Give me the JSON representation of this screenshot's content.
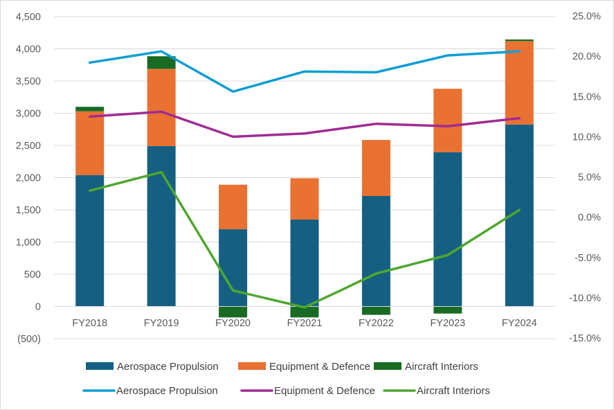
{
  "chart_data": {
    "type": "bar",
    "categories": [
      "FY2018",
      "FY2019",
      "FY2020",
      "FY2021",
      "FY2022",
      "FY2023",
      "FY2024"
    ],
    "left_axis": {
      "ylim": [
        -500,
        4500
      ],
      "tick_values": [
        -500,
        0,
        500,
        1000,
        1500,
        2000,
        2500,
        3000,
        3500,
        4000,
        4500
      ],
      "tick_labels": [
        "(500)",
        "0",
        "500",
        "1,000",
        "1,500",
        "2,000",
        "2,500",
        "3,000",
        "3,500",
        "4,000",
        "4,500"
      ]
    },
    "right_axis": {
      "ylim": [
        -15,
        25
      ],
      "tick_values": [
        -15,
        -10,
        -5,
        0,
        5,
        10,
        15,
        20,
        25
      ],
      "tick_labels": [
        "-15.0%",
        "-10.0%",
        "-5.0%",
        "0.0%",
        "5.0%",
        "10.0%",
        "15.0%",
        "20.0%",
        "25.0%"
      ]
    },
    "bar_series": [
      {
        "name": "Aerospace Propulsion",
        "color": "#156082",
        "values": [
          2040,
          2490,
          1200,
          1350,
          1715,
          2395,
          2825
        ]
      },
      {
        "name": "Equipment & Defence",
        "color": "#E97132",
        "values": [
          990,
          1200,
          690,
          640,
          870,
          985,
          1295
        ]
      },
      {
        "name": "Aircraft Interiors",
        "color": "#196B24",
        "values": [
          70,
          195,
          -170,
          -170,
          -130,
          -110,
          25
        ]
      }
    ],
    "line_series": [
      {
        "name": "Aerospace Propulsion",
        "color": "#0F9ED5",
        "values": [
          19.2,
          20.6,
          15.6,
          18.1,
          18.0,
          20.1,
          20.6
        ]
      },
      {
        "name": "Equipment & Defence",
        "color": "#A02B93",
        "values": [
          12.5,
          13.1,
          10.0,
          10.4,
          11.6,
          11.3,
          12.3
        ]
      },
      {
        "name": "Aircraft Interiors",
        "color": "#4EA72E",
        "values": [
          3.3,
          5.6,
          -9.1,
          -11.2,
          -7.0,
          -4.7,
          0.9
        ]
      }
    ],
    "grid": true,
    "legend_position": "bottom"
  }
}
